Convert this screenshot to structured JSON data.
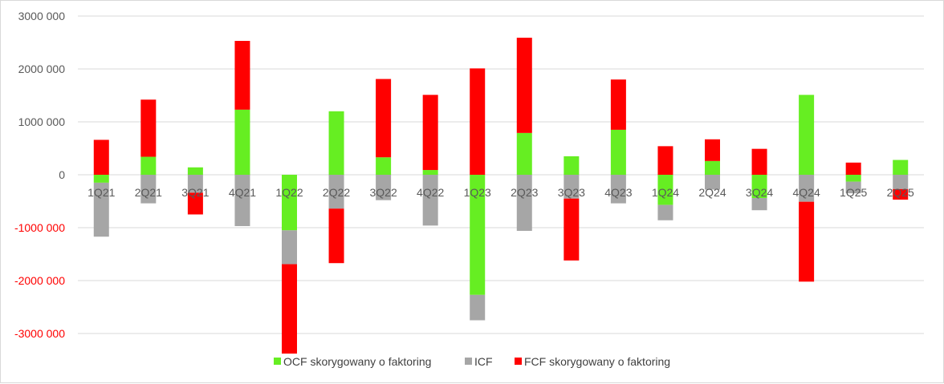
{
  "chart_data": {
    "type": "bar",
    "stacked": true,
    "categories": [
      "1Q21",
      "2Q21",
      "3Q21",
      "4Q21",
      "1Q22",
      "2Q22",
      "3Q22",
      "4Q22",
      "1Q23",
      "2Q23",
      "3Q23",
      "4Q23",
      "1Q24",
      "2Q24",
      "3Q24",
      "4Q24",
      "1Q25",
      "2Q25"
    ],
    "series": [
      {
        "name": "OCF skorygowany o faktoring",
        "color": "#66EE22",
        "values": [
          -150,
          340,
          140,
          1230,
          -1050,
          1200,
          330,
          90,
          -2270,
          790,
          350,
          850,
          -570,
          260,
          -440,
          1510,
          -130,
          280
        ]
      },
      {
        "name": "ICF",
        "color": "#A6A6A6",
        "values": [
          -1020,
          -540,
          -340,
          -970,
          -640,
          -640,
          -480,
          -960,
          -480,
          -1060,
          -450,
          -540,
          -290,
          -280,
          -230,
          -510,
          -220,
          -270
        ]
      },
      {
        "name": "FCF skorygowany o faktoring",
        "color": "#FF0000",
        "values": [
          660,
          1080,
          -410,
          1300,
          -1690,
          -1030,
          1480,
          1420,
          2010,
          1800,
          -1170,
          950,
          540,
          410,
          490,
          -1510,
          230,
          -200
        ]
      }
    ],
    "ylim": [
      -3000000,
      3000000
    ],
    "yticks": [
      {
        "value": 3000,
        "label": "3000 000",
        "color": "#595959"
      },
      {
        "value": 2000,
        "label": "2000 000",
        "color": "#595959"
      },
      {
        "value": 1000,
        "label": "1000 000",
        "color": "#595959"
      },
      {
        "value": 0,
        "label": "0",
        "color": "#595959"
      },
      {
        "value": -1000,
        "label": "-1000 000",
        "color": "#FF0000"
      },
      {
        "value": -2000,
        "label": "-2000 000",
        "color": "#FF0000"
      },
      {
        "value": -3000,
        "label": "-3000 000",
        "color": "#FF0000"
      }
    ],
    "grid": true,
    "legend_position": "bottom"
  }
}
